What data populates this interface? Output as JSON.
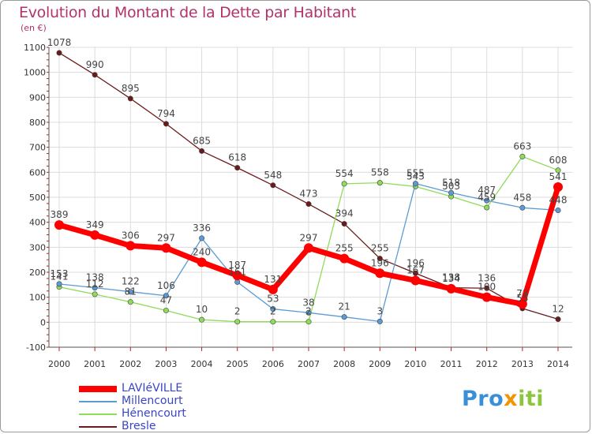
{
  "title": "Evolution du Montant de la Dette par Habitant",
  "unit_label": "(en €)",
  "logo": {
    "text": "Proxiti",
    "colors": [
      "#3a8fd8",
      "#f29400",
      "#8cc63f"
    ]
  },
  "chart_data": {
    "type": "line",
    "x": [
      2000,
      2001,
      2002,
      2003,
      2004,
      2005,
      2006,
      2007,
      2008,
      2009,
      2010,
      2011,
      2012,
      2013,
      2014
    ],
    "ylim": [
      -100,
      1100
    ],
    "yticks": [
      -100,
      0,
      100,
      200,
      300,
      400,
      500,
      600,
      700,
      800,
      900,
      1000,
      1100
    ],
    "grid": true,
    "legend_position": "bottom-left",
    "series": [
      {
        "name": "LAVIéVILLE",
        "color": "#ff0000",
        "values": [
          389,
          349,
          306,
          297,
          240,
          187,
          131,
          297,
          255,
          196,
          167,
          134,
          100,
          73,
          541
        ]
      },
      {
        "name": "Millencourt",
        "color": "#5b9bd5",
        "values": [
          153,
          138,
          122,
          106,
          336,
          161,
          53,
          38,
          21,
          3,
          555,
          518,
          487,
          458,
          448
        ]
      },
      {
        "name": "Hénencourt",
        "color": "#8fdc5a",
        "values": [
          141,
          112,
          81,
          47,
          10,
          2,
          2,
          2,
          554,
          558,
          543,
          503,
          459,
          663,
          608
        ]
      },
      {
        "name": "Bresle",
        "color": "#6b1a1a",
        "values": [
          1078,
          990,
          895,
          794,
          685,
          618,
          548,
          473,
          394,
          255,
          196,
          138,
          136,
          55,
          12
        ]
      }
    ]
  }
}
